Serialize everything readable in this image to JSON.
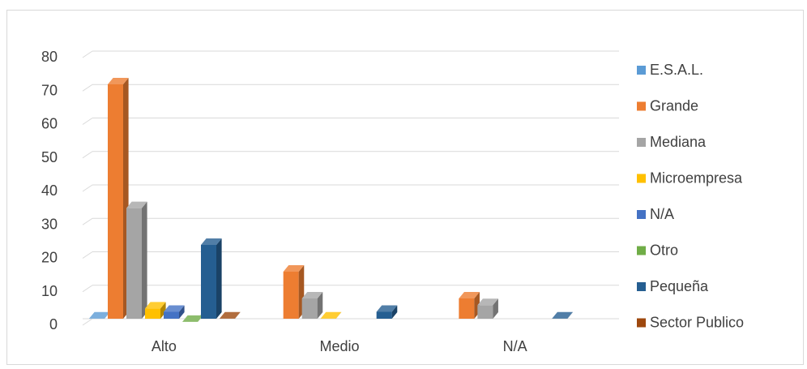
{
  "chart_data": {
    "type": "bar",
    "title": "",
    "xlabel": "",
    "ylabel": "",
    "categories": [
      "Alto",
      "Medio",
      "N/A"
    ],
    "ylim": [
      0,
      80
    ],
    "yticks": [
      0,
      10,
      20,
      30,
      40,
      50,
      60,
      70,
      80
    ],
    "grid": true,
    "legend_position": "right",
    "series": [
      {
        "name": "E.S.A.L.",
        "color": "#5b9bd5",
        "values": [
          2,
          0,
          0
        ]
      },
      {
        "name": "Grande",
        "color": "#ed7d31",
        "values": [
          72,
          16,
          8
        ]
      },
      {
        "name": "Mediana",
        "color": "#a5a5a5",
        "values": [
          35,
          8,
          6
        ]
      },
      {
        "name": "Microempresa",
        "color": "#ffc000",
        "values": [
          5,
          2,
          0
        ]
      },
      {
        "name": "N/A",
        "color": "#4472c4",
        "values": [
          4,
          0,
          0
        ]
      },
      {
        "name": "Otro",
        "color": "#70ad47",
        "values": [
          1,
          0,
          0
        ]
      },
      {
        "name": "Pequeña",
        "color": "#255e91",
        "values": [
          24,
          4,
          2
        ]
      },
      {
        "name": "Sector Publico",
        "color": "#9e480e",
        "values": [
          2,
          0,
          0
        ]
      }
    ]
  }
}
